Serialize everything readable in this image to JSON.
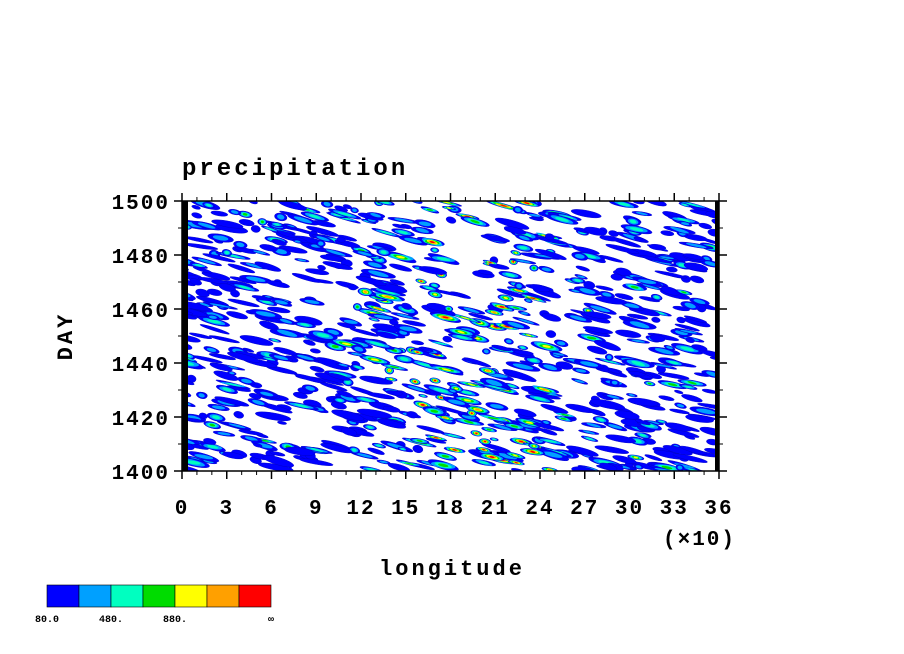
{
  "chart_data": {
    "type": "hovmoller",
    "title": "precipitation",
    "x_label": "longitude",
    "y_label": "DAY",
    "x_scale_note": "(×10)",
    "xlim": [
      0,
      36
    ],
    "xticks": [
      0,
      3,
      6,
      9,
      12,
      15,
      18,
      21,
      24,
      27,
      30,
      33,
      36
    ],
    "ylim": [
      1400,
      1500
    ],
    "yticks": [
      1400,
      1420,
      1440,
      1460,
      1480,
      1500
    ],
    "colorbar": {
      "colors": [
        "#0000ff",
        "#00a0ff",
        "#00ffc0",
        "#00dc00",
        "#ffff00",
        "#ffa000",
        "#ff0000"
      ],
      "boundaries": [
        "80.0",
        null,
        "480.",
        null,
        "880.",
        null,
        null,
        "∞"
      ]
    }
  }
}
